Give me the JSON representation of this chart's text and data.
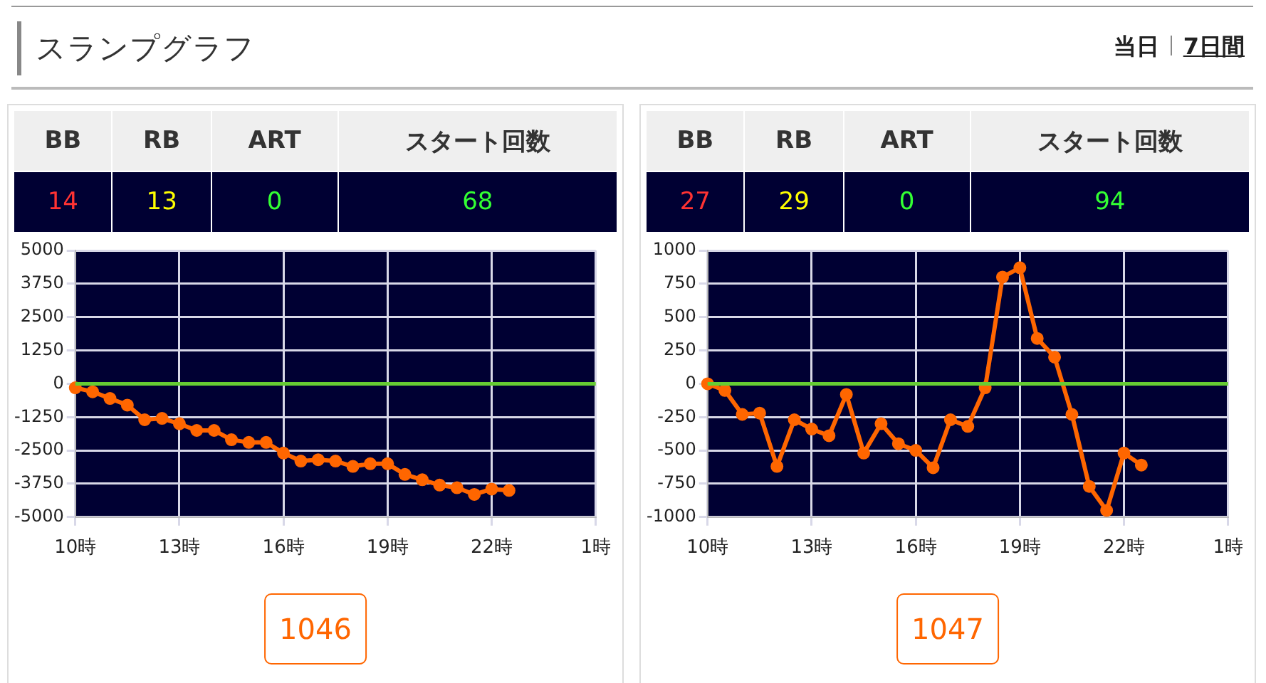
{
  "chart_data": [
    {
      "type": "other",
      "title": "スランプグラフ",
      "annotations": [
        "当日",
        "7日間"
      ],
      "categories": [
        "BB",
        "RB",
        "ART",
        "スタート回数"
      ],
      "values": [
        14,
        13,
        0,
        68
      ],
      "data_labels": true
    },
    {
      "type": "line",
      "categories": [
        "10時",
        null,
        null,
        null,
        null,
        null,
        "13時",
        null,
        null,
        null,
        null,
        null,
        "16時",
        null,
        null,
        null,
        null,
        null,
        "19時",
        null,
        null,
        null,
        null,
        null,
        "22時",
        null,
        null,
        null,
        null,
        null,
        "1時"
      ],
      "series": [
        {
          "color": "#ff6600",
          "values": [
            -150,
            -300,
            -550,
            -800,
            -1350,
            -1300,
            -1500,
            -1750,
            -1750,
            -2100,
            -2200,
            -2200,
            -2600,
            -2900,
            -2850,
            -2900,
            -3100,
            -3000,
            -3000,
            -3400,
            -3600,
            -3800,
            -3900,
            -4150,
            -3950,
            -4000,
            null,
            null,
            null,
            null,
            null
          ]
        }
      ],
      "ylim": [
        -5000,
        5000
      ],
      "yticks": [
        -5000,
        -3750,
        -2500,
        -1250,
        0,
        1250,
        2500,
        3750,
        5000
      ],
      "ref_lines": [
        {
          "axis": "y",
          "value": 0,
          "label": null,
          "color": "#66cc33"
        }
      ],
      "grid": true,
      "legend": false,
      "marker": "circle",
      "line_style": "solid",
      "annotations": [
        "1046"
      ]
    },
    {
      "type": "other",
      "categories": [
        "BB",
        "RB",
        "ART",
        "スタート回数"
      ],
      "values": [
        27,
        29,
        0,
        94
      ],
      "data_labels": true
    },
    {
      "type": "line",
      "categories": [
        "10時",
        null,
        null,
        null,
        null,
        null,
        "13時",
        null,
        null,
        null,
        null,
        null,
        "16時",
        null,
        null,
        null,
        null,
        null,
        "19時",
        null,
        null,
        null,
        null,
        null,
        "22時",
        null,
        null,
        null,
        null,
        null,
        "1時"
      ],
      "series": [
        {
          "color": "#ff6600",
          "values": [
            0,
            -50,
            -230,
            -220,
            -620,
            -270,
            -340,
            -390,
            -80,
            -520,
            -300,
            -450,
            -500,
            -630,
            -270,
            -320,
            -30,
            800,
            870,
            340,
            200,
            -230,
            -770,
            -950,
            -520,
            -610,
            null,
            null,
            null,
            null,
            null
          ]
        }
      ],
      "ylim": [
        -1000,
        1000
      ],
      "yticks": [
        -1000,
        -750,
        -500,
        -250,
        0,
        250,
        500,
        750,
        1000
      ],
      "ref_lines": [
        {
          "axis": "y",
          "value": 0,
          "label": null,
          "color": "#66cc33"
        }
      ],
      "grid": true,
      "legend": false,
      "marker": "circle",
      "line_style": "solid",
      "annotations": [
        "1047"
      ]
    }
  ]
}
